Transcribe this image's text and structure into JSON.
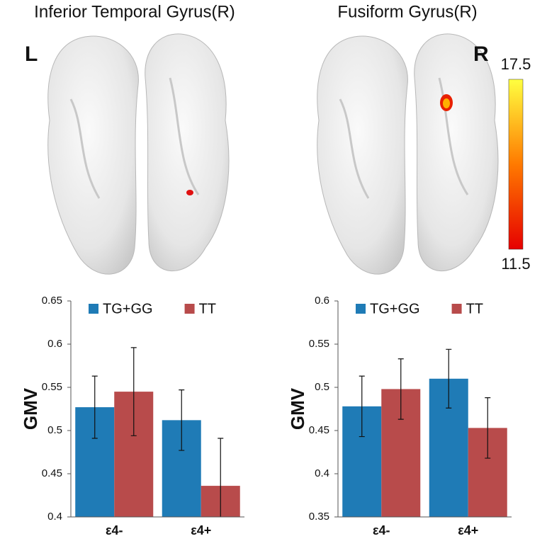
{
  "figure": {
    "hemisphere_labels": [
      "L",
      "R"
    ],
    "colorbar": {
      "max": 17.5,
      "min": 11.5
    }
  },
  "chart_data": [
    {
      "type": "bar",
      "title": "Inferior Temporal Gyrus(R)",
      "y_label": "GMV",
      "categories": [
        "ε4-",
        "ε4+"
      ],
      "series": [
        {
          "name": "TG+GG",
          "color": "#1f7bb6",
          "values": [
            0.527,
            0.512
          ],
          "errors": [
            0.036,
            0.035
          ]
        },
        {
          "name": "TT",
          "color": "#b84b4b",
          "values": [
            0.545,
            0.436
          ],
          "errors": [
            0.051,
            0.055
          ]
        }
      ],
      "ylim": [
        0.4,
        0.65
      ],
      "yticks": [
        0.4,
        0.45,
        0.5,
        0.55,
        0.6,
        0.65
      ],
      "legend": "top"
    },
    {
      "type": "bar",
      "title": "Fusiform Gyrus(R)",
      "y_label": "GMV",
      "categories": [
        "ε4-",
        "ε4+"
      ],
      "series": [
        {
          "name": "TG+GG",
          "color": "#1f7bb6",
          "values": [
            0.478,
            0.51
          ],
          "errors": [
            0.035,
            0.034
          ]
        },
        {
          "name": "TT",
          "color": "#b84b4b",
          "values": [
            0.498,
            0.453
          ],
          "errors": [
            0.035,
            0.035
          ]
        }
      ],
      "ylim": [
        0.35,
        0.6
      ],
      "yticks": [
        0.35,
        0.4,
        0.45,
        0.5,
        0.55,
        0.6
      ],
      "legend": "top"
    }
  ]
}
